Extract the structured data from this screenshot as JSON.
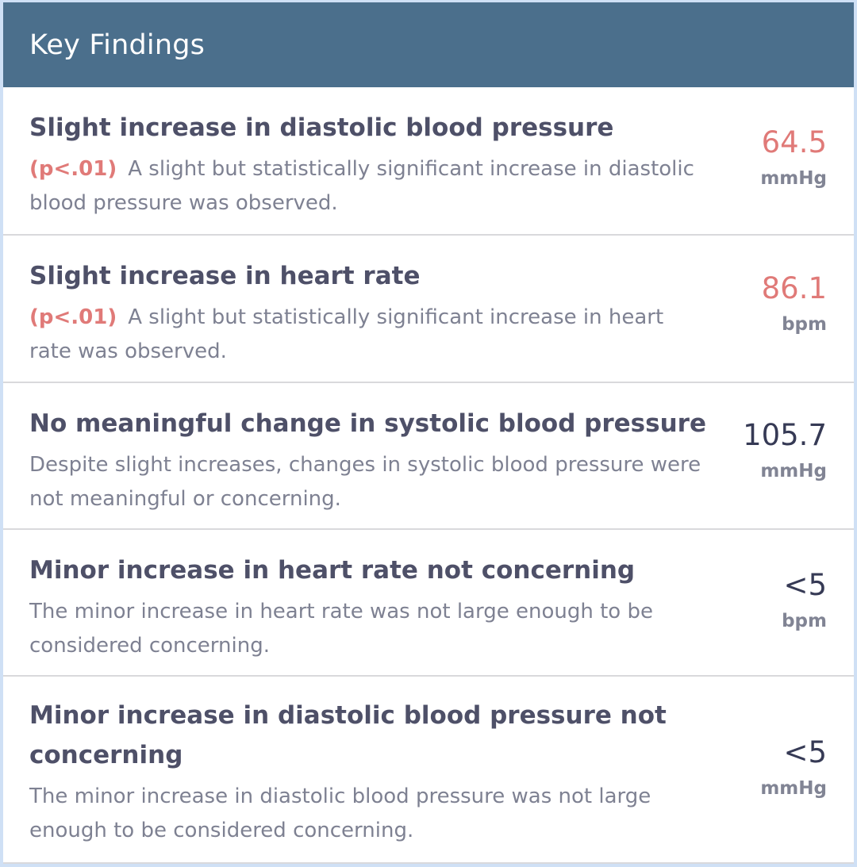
{
  "header": {
    "title": "Key Findings"
  },
  "findings": [
    {
      "title": "Slight increase in diastolic blood pressure",
      "pvalue": "(p<.01)",
      "description": "A slight but statistically significant increase in diastolic blood pressure was observed.",
      "value": "64.5",
      "unit": "mmHg"
    },
    {
      "title": "Slight increase in heart rate",
      "pvalue": "(p<.01)",
      "description": "A slight but statistically significant increase in heart rate was observed.",
      "value": "86.1",
      "unit": "bpm"
    },
    {
      "title": "No meaningful change in systolic blood pressure",
      "description": "Despite slight increases, changes in systolic blood pressure were not meaningful or concerning.",
      "value": "105.7",
      "unit": "mmHg"
    },
    {
      "title": "Minor increase in heart rate not concerning",
      "description": "The minor increase in heart rate was not large enough to be considered concerning.",
      "value": "<5",
      "unit": "bpm"
    },
    {
      "title": "Minor increase in diastolic blood pressure not concerning",
      "description": "The minor increase in diastolic blood pressure was not large enough to be considered concerning.",
      "value": "<5",
      "unit": "mmHg"
    }
  ],
  "colors": {
    "header_bg": "#4b6f8c",
    "significant_value": "#e07a78",
    "normal_value": "#363a55"
  }
}
